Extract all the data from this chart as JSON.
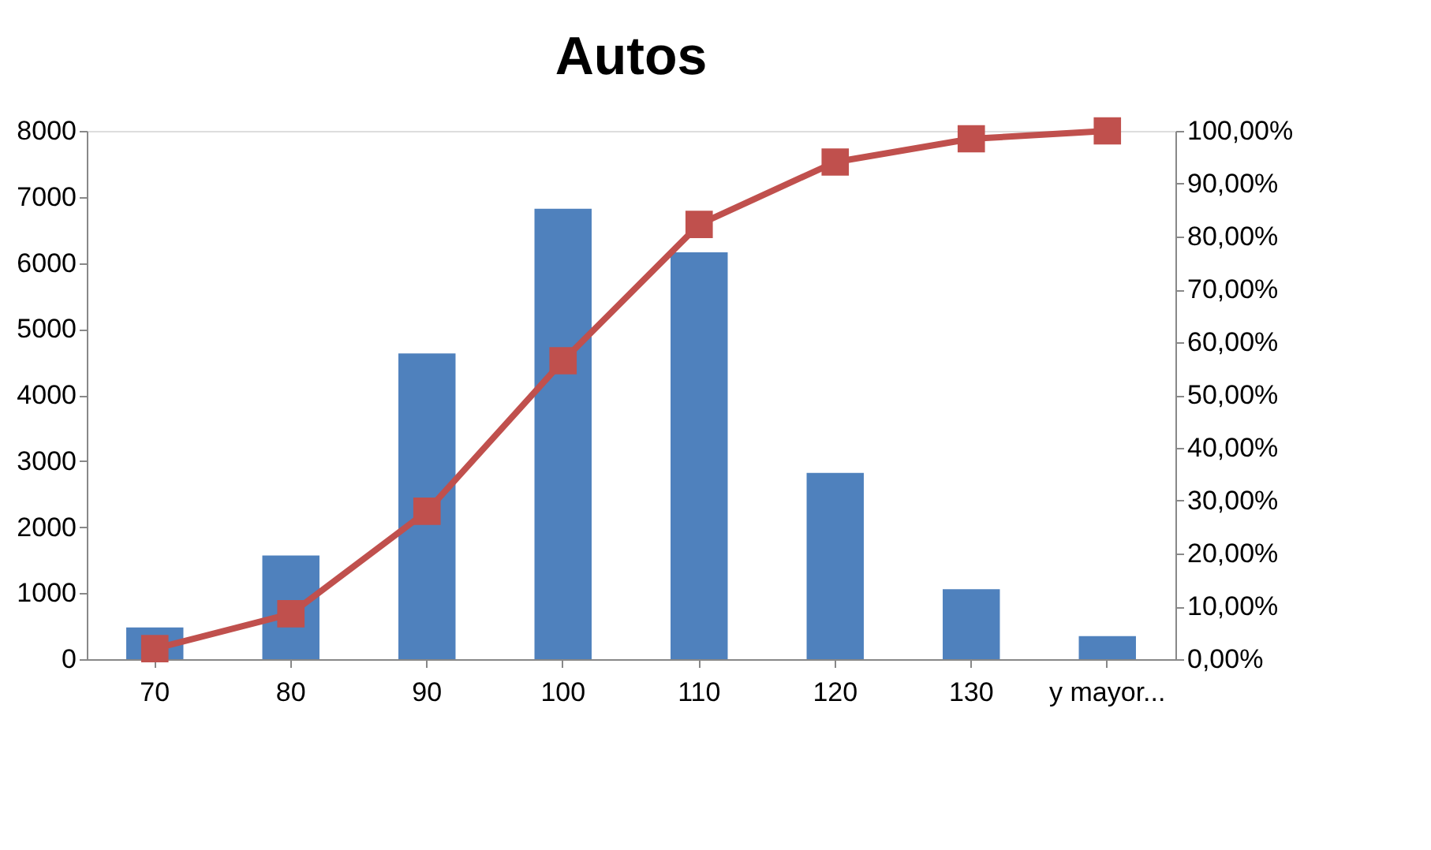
{
  "chart_data": {
    "type": "bar",
    "title": "Autos",
    "categories": [
      "70",
      "80",
      "90",
      "100",
      "110",
      "120",
      "130",
      "y mayor..."
    ],
    "series": [
      {
        "color": "#4f81bd",
        "values": [
          480,
          1570,
          4630,
          6820,
          6160,
          2820,
          1060,
          350
        ]
      },
      {
        "type": "line",
        "axis": "y2",
        "color": "#c0504d",
        "marker": "square",
        "line_style": "solid",
        "values": [
          2.0,
          8.6,
          28.0,
          56.5,
          82.3,
          94.1,
          98.5,
          100
        ]
      }
    ],
    "ylim": [
      0,
      8000
    ],
    "yticks": [
      0,
      1000,
      2000,
      3000,
      4000,
      5000,
      6000,
      7000,
      8000
    ],
    "y2lim": [
      0,
      100
    ],
    "y2ticks": [
      {
        "value": 0,
        "label": "0,00%"
      },
      {
        "value": 10,
        "label": "10,00%"
      },
      {
        "value": 20,
        "label": "20,00%"
      },
      {
        "value": 30,
        "label": "30,00%"
      },
      {
        "value": 40,
        "label": "40,00%"
      },
      {
        "value": 50,
        "label": "50,00%"
      },
      {
        "value": 60,
        "label": "60,00%"
      },
      {
        "value": 70,
        "label": "70,00%"
      },
      {
        "value": 80,
        "label": "80,00%"
      },
      {
        "value": 90,
        "label": "90,00%"
      },
      {
        "value": 100,
        "label": "100,00%"
      }
    ],
    "grid": false
  }
}
